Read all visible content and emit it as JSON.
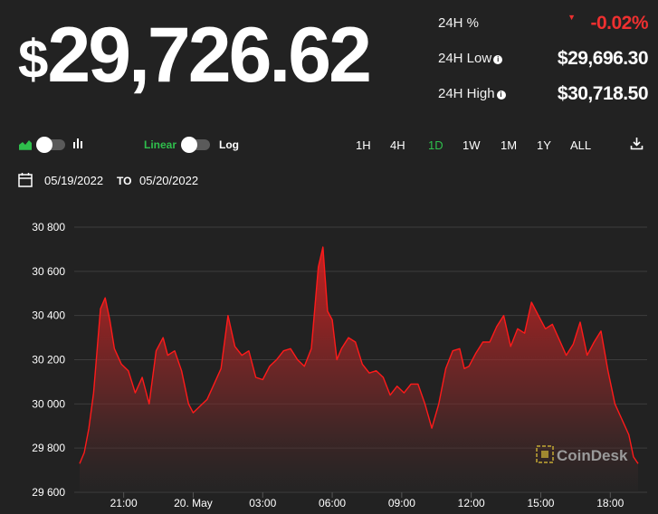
{
  "header": {
    "price_symbol": "$",
    "price_value": "29,726.62"
  },
  "stats": {
    "change_label": "24H %",
    "change_value": "-0.02%",
    "low_label": "24H Low",
    "low_value": "$29,696.30",
    "high_label": "24H High",
    "high_value": "$30,718.50"
  },
  "toolbar": {
    "area_chart_icon": "area-chart-icon",
    "bar_chart_icon": "bar-chart-icon",
    "linear_label": "Linear",
    "log_label": "Log",
    "ranges": [
      "1H",
      "4H",
      "1D",
      "1W",
      "1M",
      "1Y",
      "ALL"
    ],
    "active_range": "1D",
    "download_icon": "download-icon"
  },
  "date_range": {
    "calendar_icon": "calendar-icon",
    "from": "05/19/2022",
    "to_label": "TO",
    "to": "05/20/2022"
  },
  "watermark": "CoinDesk",
  "colors": {
    "background": "#222222",
    "line": "#ff1a1a",
    "negative": "#ee3030",
    "active": "#2fbf4c"
  },
  "chart_data": {
    "type": "area",
    "y_ticks": [
      "30 800",
      "30 600",
      "30 400",
      "30 200",
      "30 000",
      "29 800",
      "29 600"
    ],
    "y_tick_values": [
      30800,
      30600,
      30400,
      30200,
      30000,
      29800,
      29600
    ],
    "x_ticks": [
      "21:00",
      "20. May",
      "03:00",
      "06:00",
      "09:00",
      "12:00",
      "15:00",
      "18:00"
    ],
    "x_tick_hours": [
      21,
      24,
      27,
      30,
      33,
      36,
      39,
      42
    ],
    "ylim": [
      29600,
      30800
    ],
    "xlim_hours": [
      19.1,
      43.2
    ],
    "grid": true,
    "x_hours": [
      19.1,
      19.3,
      19.5,
      19.7,
      20.0,
      20.2,
      20.4,
      20.6,
      20.9,
      21.2,
      21.5,
      21.8,
      22.1,
      22.4,
      22.7,
      22.9,
      23.2,
      23.5,
      23.8,
      24.0,
      24.3,
      24.6,
      24.9,
      25.2,
      25.5,
      25.8,
      26.1,
      26.4,
      26.7,
      27.0,
      27.3,
      27.6,
      27.9,
      28.2,
      28.5,
      28.8,
      29.1,
      29.4,
      29.6,
      29.8,
      30.0,
      30.2,
      30.4,
      30.7,
      31.0,
      31.3,
      31.6,
      31.9,
      32.2,
      32.5,
      32.8,
      33.1,
      33.4,
      33.7,
      34.0,
      34.3,
      34.6,
      34.9,
      35.2,
      35.5,
      35.7,
      35.9,
      36.2,
      36.5,
      36.8,
      37.1,
      37.4,
      37.7,
      38.0,
      38.3,
      38.6,
      38.9,
      39.2,
      39.5,
      39.8,
      40.1,
      40.4,
      40.7,
      41.0,
      41.3,
      41.6,
      41.9,
      42.2,
      42.5,
      42.8,
      43.0,
      43.2
    ],
    "y_values": [
      29730,
      29780,
      29890,
      30050,
      30430,
      30480,
      30380,
      30250,
      30180,
      30150,
      30050,
      30120,
      30000,
      30240,
      30300,
      30220,
      30240,
      30150,
      30000,
      29960,
      29990,
      30020,
      30090,
      30160,
      30400,
      30260,
      30220,
      30240,
      30120,
      30110,
      30170,
      30200,
      30240,
      30250,
      30200,
      30170,
      30250,
      30620,
      30710,
      30420,
      30380,
      30200,
      30250,
      30300,
      30280,
      30180,
      30140,
      30150,
      30120,
      30040,
      30080,
      30050,
      30090,
      30090,
      30000,
      29890,
      30000,
      30160,
      30240,
      30250,
      30160,
      30170,
      30230,
      30280,
      30280,
      30350,
      30400,
      30260,
      30340,
      30320,
      30460,
      30400,
      30340,
      30360,
      30290,
      30220,
      30270,
      30370,
      30220,
      30280,
      30330,
      30150,
      30000,
      29930,
      29860,
      29760,
      29730
    ]
  }
}
